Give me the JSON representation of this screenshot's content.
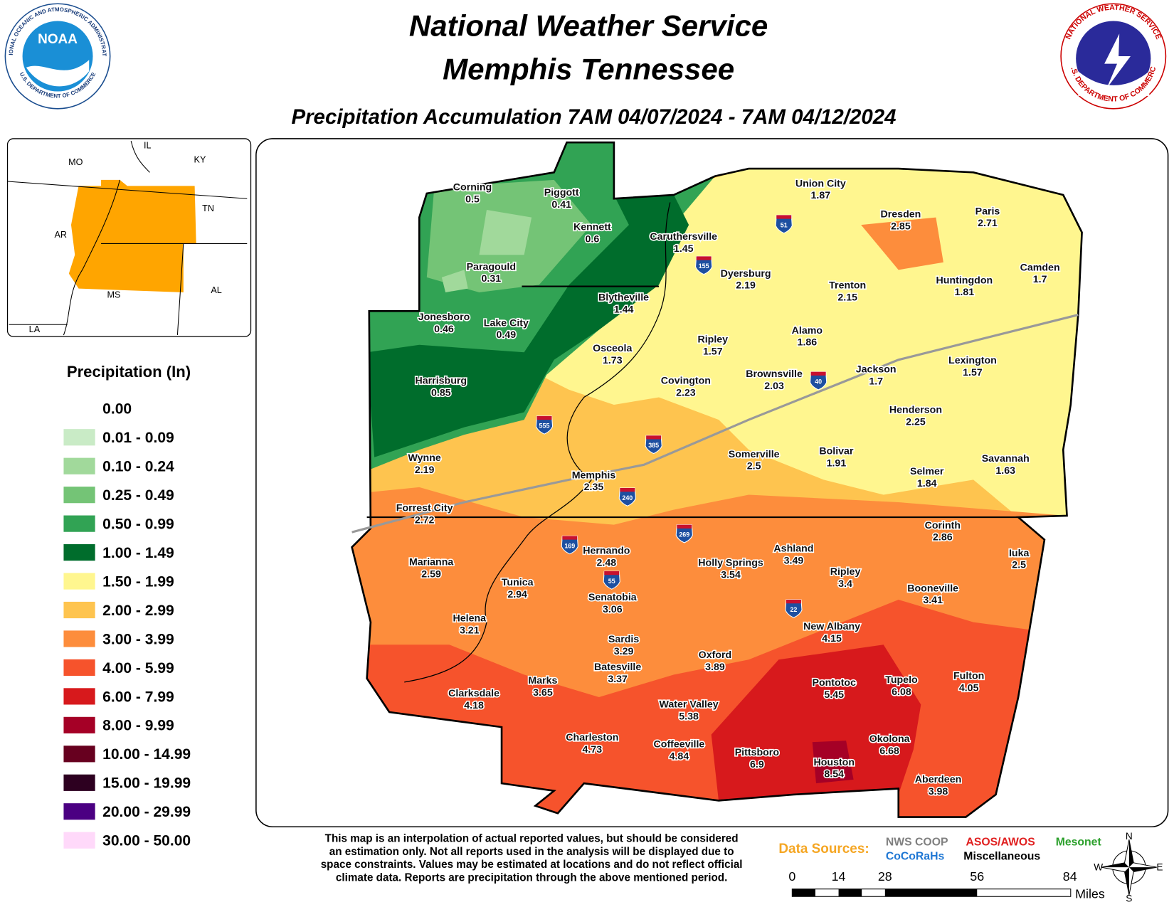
{
  "header": {
    "title": "National Weather Service",
    "subtitle": "Memphis Tennessee",
    "period": "Precipitation Accumulation 7AM 04/07/2024 - 7AM 04/12/2024"
  },
  "logos": {
    "noaa": {
      "short": "NOAA",
      "ring_top": "NATIONAL OCEANIC AND ATMOSPHERIC ADMINISTRATION",
      "ring_bottom": "U.S. DEPARTMENT OF COMMERCE"
    },
    "nws": {
      "ring_top": "NATIONAL WEATHER SERVICE",
      "ring_bottom": "U.S. DEPARTMENT OF COMMERCE"
    }
  },
  "inset": {
    "labels": [
      "MO",
      "IL",
      "KY",
      "TN",
      "AR",
      "MS",
      "AL",
      "LA"
    ]
  },
  "legend": {
    "title": "Precipitation (In)",
    "items": [
      {
        "label": "0.00",
        "color": "#ffffff"
      },
      {
        "label": "0.01 - 0.09",
        "color": "#c9ebc6"
      },
      {
        "label": "0.10 - 0.24",
        "color": "#a1d99b"
      },
      {
        "label": "0.25 - 0.49",
        "color": "#74c476"
      },
      {
        "label": "0.50 - 0.99",
        "color": "#31a354"
      },
      {
        "label": "1.00 - 1.49",
        "color": "#006d2c"
      },
      {
        "label": "1.50 - 1.99",
        "color": "#fff68f"
      },
      {
        "label": "2.00 - 2.99",
        "color": "#fec44f"
      },
      {
        "label": "3.00 - 3.99",
        "color": "#fd8d3c"
      },
      {
        "label": "4.00 - 5.99",
        "color": "#f6532c"
      },
      {
        "label": "6.00 - 7.99",
        "color": "#d7191c"
      },
      {
        "label": "8.00 - 9.99",
        "color": "#a50026"
      },
      {
        "label": "10.00 - 14.99",
        "color": "#67001f"
      },
      {
        "label": "15.00 - 19.99",
        "color": "#2d0020"
      },
      {
        "label": "20.00 - 29.99",
        "color": "#4b0082"
      },
      {
        "label": "30.00 - 50.00",
        "color": "#ffd9fa"
      }
    ]
  },
  "cities": [
    {
      "name": "Corning",
      "value": 0.5
    },
    {
      "name": "Piggott",
      "value": 0.41
    },
    {
      "name": "Kennett",
      "value": 0.6
    },
    {
      "name": "Caruthersville",
      "value": 1.45
    },
    {
      "name": "Paragould",
      "value": 0.31
    },
    {
      "name": "Union City",
      "value": 1.87
    },
    {
      "name": "Dresden",
      "value": 2.85
    },
    {
      "name": "Paris",
      "value": 2.71
    },
    {
      "name": "Dyersburg",
      "value": 2.19
    },
    {
      "name": "Camden",
      "value": 1.7
    },
    {
      "name": "Trenton",
      "value": 2.15
    },
    {
      "name": "Huntingdon",
      "value": 1.81
    },
    {
      "name": "Blytheville",
      "value": 1.44
    },
    {
      "name": "Jonesboro",
      "value": 0.46
    },
    {
      "name": "Lake City",
      "value": 0.49
    },
    {
      "name": "Alamo",
      "value": 1.86
    },
    {
      "name": "Ripley",
      "value": 1.57
    },
    {
      "name": "Osceola",
      "value": 1.73
    },
    {
      "name": "Lexington",
      "value": 1.57
    },
    {
      "name": "Jackson",
      "value": 1.7
    },
    {
      "name": "Brownsville",
      "value": 2.03
    },
    {
      "name": "Covington",
      "value": 2.23
    },
    {
      "name": "Harrisburg",
      "value": 0.85
    },
    {
      "name": "Henderson",
      "value": 2.25
    },
    {
      "name": "Bolivar",
      "value": 1.91
    },
    {
      "name": "Somerville",
      "value": 2.5
    },
    {
      "name": "Wynne",
      "value": 2.19
    },
    {
      "name": "Savannah",
      "value": 1.63
    },
    {
      "name": "Selmer",
      "value": 1.84
    },
    {
      "name": "Memphis",
      "value": 2.35
    },
    {
      "name": "Forrest City",
      "value": 2.72
    },
    {
      "name": "Corinth",
      "value": 2.86
    },
    {
      "name": "Ashland",
      "value": 3.49
    },
    {
      "name": "Hernando",
      "value": 2.48
    },
    {
      "name": "Iuka",
      "value": 2.5
    },
    {
      "name": "Marianna",
      "value": 2.59
    },
    {
      "name": "Holly Springs",
      "value": 3.54
    },
    {
      "name": "Ripley",
      "value": 3.4
    },
    {
      "name": "Tunica",
      "value": 2.94
    },
    {
      "name": "Booneville",
      "value": 3.41
    },
    {
      "name": "Senatobia",
      "value": 3.06
    },
    {
      "name": "Helena",
      "value": 3.21
    },
    {
      "name": "New Albany",
      "value": 4.15
    },
    {
      "name": "Sardis",
      "value": 3.29
    },
    {
      "name": "Oxford",
      "value": 3.89
    },
    {
      "name": "Batesville",
      "value": 3.37
    },
    {
      "name": "Marks",
      "value": 3.65
    },
    {
      "name": "Fulton",
      "value": 4.05
    },
    {
      "name": "Pontotoc",
      "value": 5.45
    },
    {
      "name": "Tupelo",
      "value": 6.08
    },
    {
      "name": "Clarksdale",
      "value": 4.18
    },
    {
      "name": "Water Valley",
      "value": 5.38
    },
    {
      "name": "Charleston",
      "value": 4.73
    },
    {
      "name": "Okolona",
      "value": 6.68
    },
    {
      "name": "Coffeeville",
      "value": 4.84
    },
    {
      "name": "Pittsboro",
      "value": 6.9
    },
    {
      "name": "Houston",
      "value": 8.54
    },
    {
      "name": "Aberdeen",
      "value": 3.98
    }
  ],
  "interstates": [
    "51",
    "155",
    "40",
    "555",
    "385",
    "240",
    "269",
    "169",
    "55",
    "22"
  ],
  "footer": {
    "note": [
      "This map is an interpolation of actual reported values, but should be considered",
      "an estimation only. Not all reports used in the analysis will be displayed due to",
      "space constraints. Values may be estimated at locations and do not reflect official",
      "climate data. Reports are precipitation through the above mentioned period."
    ],
    "sources_label": "Data Sources:",
    "sources": [
      {
        "name": "NWS COOP",
        "color": "#808080"
      },
      {
        "name": "ASOS/AWOS",
        "color": "#e02020"
      },
      {
        "name": "Mesonet",
        "color": "#2ca02c"
      },
      {
        "name": "CoCoRaHs",
        "color": "#1f77d4"
      },
      {
        "name": "Miscellaneous",
        "color": "#000000"
      }
    ],
    "scale": {
      "ticks": [
        "0",
        "14",
        "28",
        "56",
        "84"
      ],
      "unit": "Miles"
    },
    "compass": [
      "N",
      "S",
      "W",
      "E"
    ]
  }
}
